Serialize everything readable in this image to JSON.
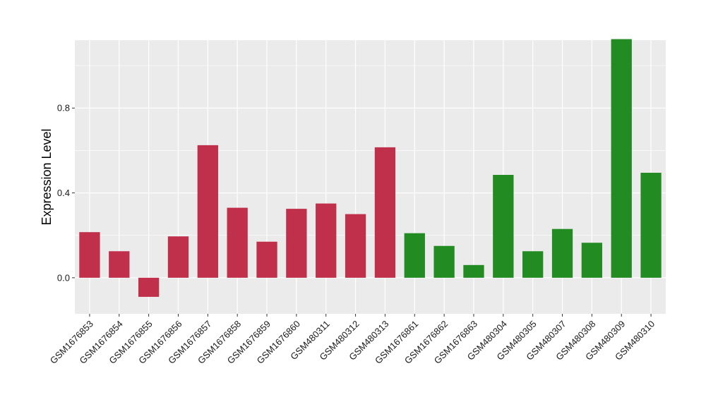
{
  "chart_data": {
    "type": "bar",
    "ylabel": "Expression Level",
    "xlabel": "",
    "title": "",
    "ylim": [
      -0.17,
      1.12
    ],
    "yticks": [
      0.0,
      0.4,
      0.8
    ],
    "ytick_labels": [
      "0.0",
      "0.4",
      "0.8"
    ],
    "grid": true,
    "categories": [
      "GSM1676853",
      "GSM1676854",
      "GSM1676855",
      "GSM1676856",
      "GSM1676857",
      "GSM1676858",
      "GSM1676859",
      "GSM1676860",
      "GSM480311",
      "GSM480312",
      "GSM480313",
      "GSM1676861",
      "GSM1676862",
      "GSM1676863",
      "GSM480304",
      "GSM480305",
      "GSM480307",
      "GSM480308",
      "GSM480309",
      "GSM480310"
    ],
    "values": [
      0.215,
      0.125,
      -0.09,
      0.195,
      0.625,
      0.33,
      0.17,
      0.325,
      0.35,
      0.3,
      0.615,
      0.21,
      0.15,
      0.06,
      0.485,
      0.125,
      0.23,
      0.165,
      1.125,
      0.495
    ],
    "groups": [
      "red",
      "red",
      "red",
      "red",
      "red",
      "red",
      "red",
      "red",
      "red",
      "red",
      "red",
      "green",
      "green",
      "green",
      "green",
      "green",
      "green",
      "green",
      "green",
      "green"
    ],
    "colors": {
      "red": "#c0304a",
      "green": "#228b22",
      "panel": "#ebebeb",
      "grid": "#ffffff"
    }
  }
}
